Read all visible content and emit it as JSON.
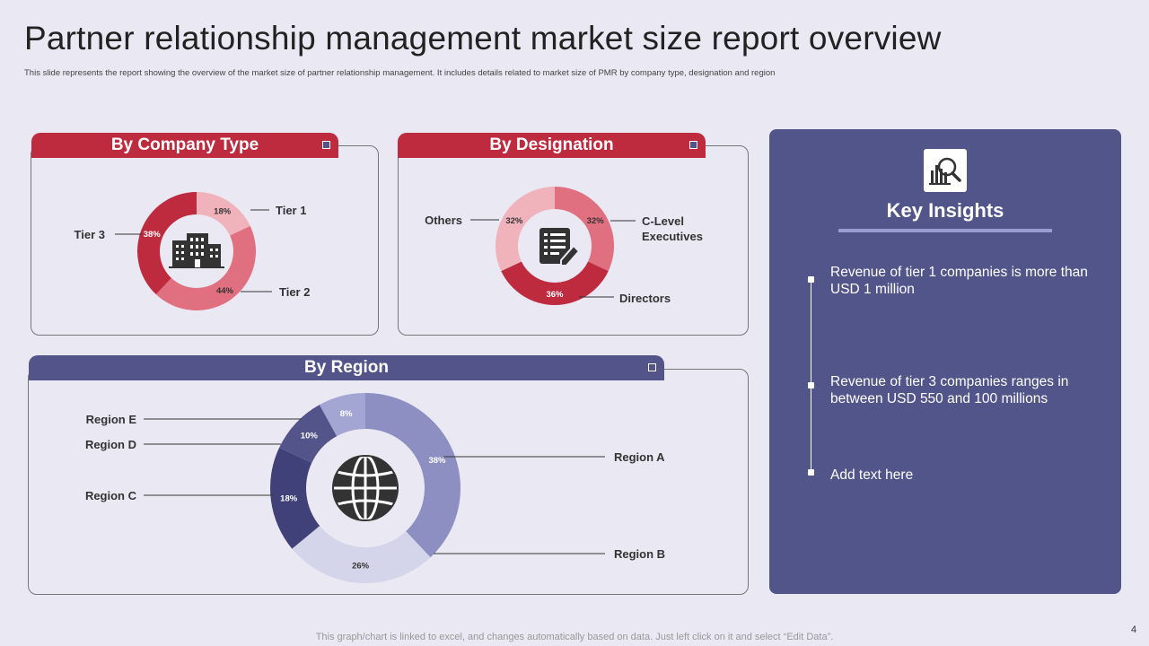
{
  "title": "Partner relationship management market size report overview",
  "subtitle": "This slide represents the report showing the overview of the market size of partner relationship management.  It includes details related to market size of PMR  by company type, designation and region",
  "footer": "This graph/chart is linked to excel,  and changes automatically based on data. Just left click on it and select “Edit Data”.",
  "page_number": "4",
  "colors": {
    "accent_red": "#be2a3e",
    "accent_blue": "#53558a",
    "background": "#e9e8f3"
  },
  "panels": {
    "company": {
      "title": "By Company Type",
      "icon": "office-building-icon"
    },
    "designation": {
      "title": "By Designation",
      "icon": "document-pen-icon"
    },
    "region": {
      "title": "By Region",
      "icon": "globe-icon"
    }
  },
  "insights": {
    "title": "Key Insights",
    "icon": "magnifier-chart-icon",
    "items": [
      "Revenue  of tier 1 companies is more than USD 1 million",
      "Revenue  of tier 3 companies ranges  in between USD 550 and 100 millions",
      "Add text here"
    ]
  },
  "chart_data": [
    {
      "type": "pie",
      "variant": "donut",
      "title": "By Company Type",
      "categories": [
        "Tier 1",
        "Tier 2",
        "Tier 3"
      ],
      "values": [
        18,
        44,
        38
      ],
      "colors": [
        "#f0b3bb",
        "#e06f7f",
        "#be2a3e"
      ],
      "label_colors": [
        "#333333",
        "#333333",
        "#ffffff"
      ]
    },
    {
      "type": "pie",
      "variant": "donut",
      "title": "By Designation",
      "categories": [
        "C-Level Executives",
        "Directors",
        "Others"
      ],
      "values": [
        32,
        36,
        32
      ],
      "colors": [
        "#e06f7f",
        "#be2a3e",
        "#f0b3bb"
      ],
      "label_colors": [
        "#333333",
        "#ffffff",
        "#333333"
      ]
    },
    {
      "type": "pie",
      "variant": "donut",
      "title": "By Region",
      "categories": [
        "Region A",
        "Region B",
        "Region C",
        "Region D",
        "Region E"
      ],
      "values": [
        38,
        26,
        18,
        10,
        8
      ],
      "colors": [
        "#8d8fc2",
        "#d4d5ea",
        "#3f4178",
        "#53558a",
        "#a3a5d2"
      ],
      "label_colors": [
        "#ffffff",
        "#333333",
        "#ffffff",
        "#ffffff",
        "#ffffff"
      ]
    }
  ]
}
